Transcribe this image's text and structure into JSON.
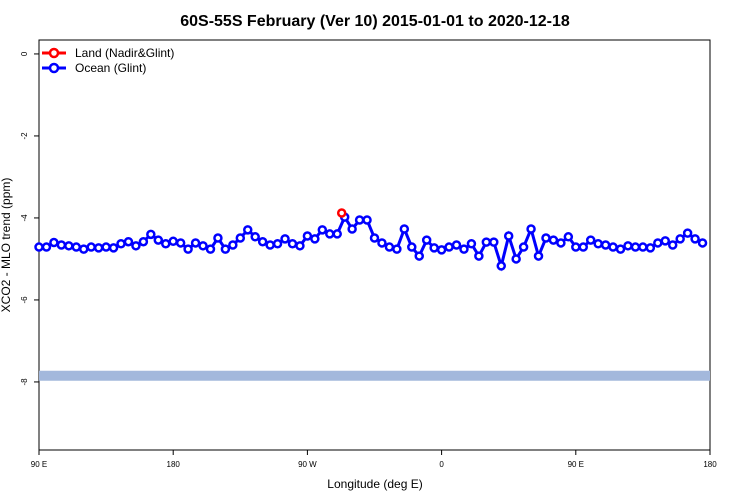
{
  "chart_data": {
    "type": "line",
    "title": "60S-55S February (Ver 10)   2015-01-01 to 2020-12-18",
    "x_label": "Longitude (deg E)",
    "y_label": "XCO2 - MLO trend (ppm)",
    "xlim": [
      90,
      540
    ],
    "xticks": [
      {
        "value": 90,
        "label": "90 E"
      },
      180,
      {
        "value": 270,
        "label": "90 W"
      },
      {
        "value": 360,
        "label": "0"
      },
      {
        "value": 450,
        "label": "90 E"
      },
      {
        "value": 540,
        "label": "180"
      }
    ],
    "ylim": [
      -9.66,
      0.34
    ],
    "yticks": [
      0,
      -2,
      -4,
      -6,
      -8
    ],
    "legend": "top-left",
    "reference_line": {
      "value": -7.85,
      "color": "#a3b8dc"
    },
    "series": [
      {
        "name": "Land (Nadir&Glint)",
        "color": "#ff0000",
        "x": [
          293
        ],
        "values": [
          -3.88
        ]
      },
      {
        "name": "Ocean (Glint)",
        "color": "#0000ff",
        "x": [
          90,
          95,
          100,
          105,
          110,
          115,
          120,
          125,
          130,
          135,
          140,
          145,
          150,
          155,
          160,
          165,
          170,
          175,
          180,
          185,
          190,
          195,
          200,
          205,
          210,
          215,
          220,
          225,
          230,
          235,
          240,
          245,
          250,
          255,
          260,
          265,
          270,
          275,
          280,
          285,
          290,
          295,
          300,
          305,
          310,
          315,
          320,
          325,
          330,
          335,
          340,
          345,
          350,
          355,
          360,
          365,
          370,
          375,
          380,
          385,
          390,
          395,
          400,
          405,
          410,
          415,
          420,
          425,
          430,
          435,
          440,
          445,
          450,
          455,
          460,
          465,
          470,
          475,
          480,
          485,
          490,
          495,
          500,
          505,
          510,
          515,
          520,
          525,
          530,
          535
        ],
        "values": [
          -4.71,
          -4.71,
          -4.6,
          -4.66,
          -4.68,
          -4.71,
          -4.76,
          -4.71,
          -4.73,
          -4.71,
          -4.73,
          -4.63,
          -4.58,
          -4.68,
          -4.58,
          -4.4,
          -4.54,
          -4.63,
          -4.57,
          -4.61,
          -4.76,
          -4.61,
          -4.68,
          -4.76,
          -4.49,
          -4.76,
          -4.66,
          -4.49,
          -4.29,
          -4.46,
          -4.58,
          -4.66,
          -4.63,
          -4.51,
          -4.63,
          -4.68,
          -4.44,
          -4.51,
          -4.29,
          -4.39,
          -4.39,
          -3.98,
          -4.27,
          -4.05,
          -4.05,
          -4.49,
          -4.61,
          -4.71,
          -4.76,
          -4.27,
          -4.71,
          -4.93,
          -4.54,
          -4.73,
          -4.78,
          -4.71,
          -4.66,
          -4.76,
          -4.63,
          -4.93,
          -4.59,
          -4.59,
          -5.17,
          -4.44,
          -5.0,
          -4.71,
          -4.27,
          -4.93,
          -4.49,
          -4.54,
          -4.61,
          -4.46,
          -4.71,
          -4.71,
          -4.54,
          -4.63,
          -4.66,
          -4.71,
          -4.76,
          -4.68,
          -4.71,
          -4.71,
          -4.73,
          -4.61,
          -4.56,
          -4.66,
          -4.51,
          -4.37,
          -4.51,
          -4.61
        ]
      }
    ]
  }
}
